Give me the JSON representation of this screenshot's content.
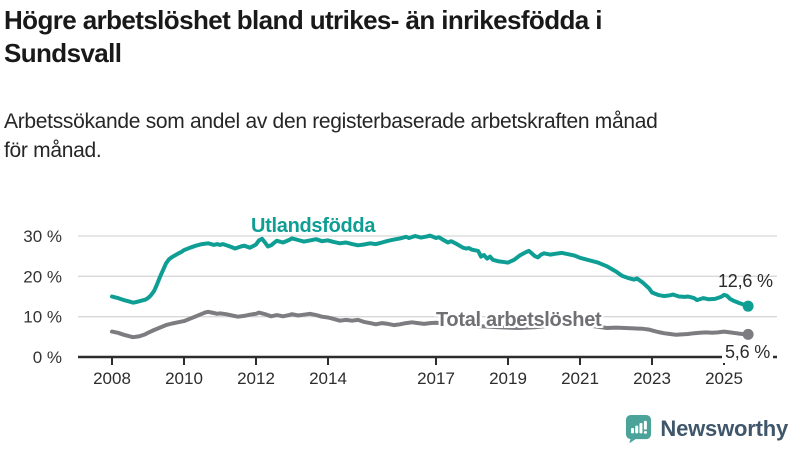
{
  "header": {
    "title_lines": [
      "Högre arbetslöshet bland utrikes- än inrikesfödda i",
      "Sundsvall"
    ],
    "subtitle_lines": [
      "Arbetssökande som andel av den registerbaserade arbetskraften månad",
      "för månad."
    ]
  },
  "chart_data": {
    "type": "line",
    "unit": "%",
    "x_axis": {
      "tick_years": [
        2008,
        2010,
        2012,
        2014,
        2017,
        2019,
        2021,
        2023,
        2025
      ],
      "range": [
        2008.0,
        2025.75
      ]
    },
    "y_axis": {
      "ticks": [
        {
          "value": 0,
          "label": "0 %"
        },
        {
          "value": 10,
          "label": "10 %"
        },
        {
          "value": 20,
          "label": "20 %"
        },
        {
          "value": 30,
          "label": "30 %"
        }
      ],
      "range": [
        0,
        32
      ],
      "gridlines": true
    },
    "legend_position": "inline-labels",
    "series": [
      {
        "name": "Utlandsfödda",
        "color": "#0e9e94",
        "end_label": "12,6 %",
        "end_value": 12.6,
        "points": [
          [
            2008.0,
            15.0
          ],
          [
            2008.08,
            14.8
          ],
          [
            2008.17,
            14.6
          ],
          [
            2008.33,
            14.1
          ],
          [
            2008.5,
            13.7
          ],
          [
            2008.58,
            13.5
          ],
          [
            2008.67,
            13.6
          ],
          [
            2008.75,
            13.8
          ],
          [
            2008.92,
            14.2
          ],
          [
            2009.0,
            14.6
          ],
          [
            2009.08,
            15.3
          ],
          [
            2009.17,
            16.4
          ],
          [
            2009.25,
            18.0
          ],
          [
            2009.33,
            19.8
          ],
          [
            2009.42,
            21.6
          ],
          [
            2009.5,
            23.2
          ],
          [
            2009.58,
            24.2
          ],
          [
            2009.67,
            24.8
          ],
          [
            2009.75,
            25.2
          ],
          [
            2009.83,
            25.6
          ],
          [
            2009.92,
            26.0
          ],
          [
            2010.0,
            26.5
          ],
          [
            2010.17,
            27.1
          ],
          [
            2010.33,
            27.6
          ],
          [
            2010.5,
            28.0
          ],
          [
            2010.67,
            28.2
          ],
          [
            2010.75,
            28.0
          ],
          [
            2010.83,
            27.8
          ],
          [
            2010.92,
            28.0
          ],
          [
            2011.0,
            27.8
          ],
          [
            2011.08,
            28.0
          ],
          [
            2011.25,
            27.5
          ],
          [
            2011.42,
            26.9
          ],
          [
            2011.58,
            27.4
          ],
          [
            2011.67,
            27.6
          ],
          [
            2011.83,
            27.1
          ],
          [
            2011.92,
            27.5
          ],
          [
            2012.0,
            27.9
          ],
          [
            2012.08,
            28.9
          ],
          [
            2012.17,
            29.3
          ],
          [
            2012.25,
            28.4
          ],
          [
            2012.33,
            27.4
          ],
          [
            2012.42,
            27.7
          ],
          [
            2012.5,
            28.3
          ],
          [
            2012.58,
            28.8
          ],
          [
            2012.75,
            28.4
          ],
          [
            2012.92,
            29.0
          ],
          [
            2013.0,
            29.4
          ],
          [
            2013.17,
            29.0
          ],
          [
            2013.33,
            28.6
          ],
          [
            2013.5,
            28.9
          ],
          [
            2013.67,
            29.2
          ],
          [
            2013.83,
            28.7
          ],
          [
            2014.0,
            28.9
          ],
          [
            2014.17,
            28.5
          ],
          [
            2014.33,
            28.2
          ],
          [
            2014.5,
            28.4
          ],
          [
            2014.67,
            28.0
          ],
          [
            2014.83,
            27.7
          ],
          [
            2015.0,
            27.9
          ],
          [
            2015.17,
            28.2
          ],
          [
            2015.33,
            28.0
          ],
          [
            2015.5,
            28.4
          ],
          [
            2015.67,
            28.8
          ],
          [
            2015.83,
            29.1
          ],
          [
            2016.0,
            29.4
          ],
          [
            2016.17,
            29.8
          ],
          [
            2016.25,
            29.5
          ],
          [
            2016.42,
            30.0
          ],
          [
            2016.58,
            29.6
          ],
          [
            2016.75,
            29.9
          ],
          [
            2016.83,
            30.1
          ],
          [
            2016.92,
            29.8
          ],
          [
            2017.0,
            29.5
          ],
          [
            2017.08,
            29.7
          ],
          [
            2017.17,
            29.2
          ],
          [
            2017.33,
            28.4
          ],
          [
            2017.42,
            28.7
          ],
          [
            2017.58,
            28.0
          ],
          [
            2017.75,
            27.1
          ],
          [
            2017.83,
            26.9
          ],
          [
            2017.92,
            27.0
          ],
          [
            2018.0,
            26.6
          ],
          [
            2018.17,
            26.3
          ],
          [
            2018.25,
            24.9
          ],
          [
            2018.33,
            25.3
          ],
          [
            2018.42,
            24.4
          ],
          [
            2018.5,
            24.9
          ],
          [
            2018.58,
            24.1
          ],
          [
            2018.75,
            23.7
          ],
          [
            2018.92,
            23.5
          ],
          [
            2019.0,
            23.4
          ],
          [
            2019.17,
            24.1
          ],
          [
            2019.33,
            25.2
          ],
          [
            2019.5,
            26.0
          ],
          [
            2019.58,
            26.3
          ],
          [
            2019.75,
            25.0
          ],
          [
            2019.83,
            24.7
          ],
          [
            2019.92,
            25.4
          ],
          [
            2020.0,
            25.7
          ],
          [
            2020.17,
            25.4
          ],
          [
            2020.33,
            25.6
          ],
          [
            2020.5,
            25.8
          ],
          [
            2020.67,
            25.5
          ],
          [
            2020.83,
            25.2
          ],
          [
            2020.92,
            24.9
          ],
          [
            2021.0,
            24.6
          ],
          [
            2021.17,
            24.2
          ],
          [
            2021.33,
            23.8
          ],
          [
            2021.5,
            23.4
          ],
          [
            2021.58,
            23.1
          ],
          [
            2021.75,
            22.5
          ],
          [
            2021.92,
            21.6
          ],
          [
            2022.0,
            21.2
          ],
          [
            2022.17,
            20.1
          ],
          [
            2022.33,
            19.6
          ],
          [
            2022.5,
            19.2
          ],
          [
            2022.58,
            19.5
          ],
          [
            2022.75,
            18.4
          ],
          [
            2022.92,
            17.0
          ],
          [
            2023.0,
            16.0
          ],
          [
            2023.17,
            15.4
          ],
          [
            2023.33,
            15.1
          ],
          [
            2023.5,
            15.3
          ],
          [
            2023.58,
            15.5
          ],
          [
            2023.75,
            15.0
          ],
          [
            2023.92,
            14.9
          ],
          [
            2024.0,
            15.0
          ],
          [
            2024.17,
            14.6
          ],
          [
            2024.25,
            14.1
          ],
          [
            2024.42,
            14.6
          ],
          [
            2024.58,
            14.3
          ],
          [
            2024.75,
            14.4
          ],
          [
            2024.92,
            14.9
          ],
          [
            2025.0,
            15.4
          ],
          [
            2025.08,
            15.2
          ],
          [
            2025.17,
            14.4
          ],
          [
            2025.25,
            14.0
          ],
          [
            2025.42,
            13.4
          ],
          [
            2025.58,
            12.9
          ],
          [
            2025.67,
            12.6
          ]
        ]
      },
      {
        "name": "Total arbetslöshet",
        "color": "#7d7d81",
        "end_label": "5,6 %",
        "end_value": 5.6,
        "points": [
          [
            2008.0,
            6.3
          ],
          [
            2008.17,
            6.0
          ],
          [
            2008.33,
            5.5
          ],
          [
            2008.5,
            5.1
          ],
          [
            2008.58,
            4.9
          ],
          [
            2008.75,
            5.1
          ],
          [
            2008.92,
            5.6
          ],
          [
            2009.0,
            6.0
          ],
          [
            2009.17,
            6.7
          ],
          [
            2009.33,
            7.3
          ],
          [
            2009.5,
            7.9
          ],
          [
            2009.67,
            8.3
          ],
          [
            2009.83,
            8.6
          ],
          [
            2010.0,
            8.9
          ],
          [
            2010.17,
            9.5
          ],
          [
            2010.33,
            10.1
          ],
          [
            2010.5,
            10.7
          ],
          [
            2010.58,
            11.0
          ],
          [
            2010.67,
            11.2
          ],
          [
            2010.83,
            10.9
          ],
          [
            2010.92,
            10.7
          ],
          [
            2011.0,
            10.8
          ],
          [
            2011.17,
            10.6
          ],
          [
            2011.33,
            10.3
          ],
          [
            2011.5,
            10.0
          ],
          [
            2011.67,
            10.2
          ],
          [
            2011.83,
            10.5
          ],
          [
            2012.0,
            10.7
          ],
          [
            2012.08,
            11.0
          ],
          [
            2012.25,
            10.6
          ],
          [
            2012.42,
            10.1
          ],
          [
            2012.58,
            10.4
          ],
          [
            2012.75,
            10.1
          ],
          [
            2012.92,
            10.4
          ],
          [
            2013.0,
            10.6
          ],
          [
            2013.17,
            10.3
          ],
          [
            2013.33,
            10.5
          ],
          [
            2013.5,
            10.7
          ],
          [
            2013.67,
            10.4
          ],
          [
            2013.83,
            10.0
          ],
          [
            2014.0,
            9.8
          ],
          [
            2014.17,
            9.4
          ],
          [
            2014.33,
            9.0
          ],
          [
            2014.5,
            9.2
          ],
          [
            2014.67,
            9.0
          ],
          [
            2014.83,
            9.2
          ],
          [
            2015.0,
            8.7
          ],
          [
            2015.17,
            8.4
          ],
          [
            2015.33,
            8.1
          ],
          [
            2015.5,
            8.4
          ],
          [
            2015.67,
            8.2
          ],
          [
            2015.83,
            7.9
          ],
          [
            2016.0,
            8.1
          ],
          [
            2016.17,
            8.4
          ],
          [
            2016.33,
            8.6
          ],
          [
            2016.5,
            8.4
          ],
          [
            2016.67,
            8.2
          ],
          [
            2016.83,
            8.4
          ],
          [
            2017.0,
            8.5
          ],
          [
            2017.25,
            8.3
          ],
          [
            2017.5,
            8.1
          ],
          [
            2017.75,
            8.0
          ],
          [
            2018.0,
            7.8
          ],
          [
            2018.25,
            7.6
          ],
          [
            2018.5,
            7.5
          ],
          [
            2018.75,
            7.4
          ],
          [
            2019.0,
            7.3
          ],
          [
            2019.25,
            7.2
          ],
          [
            2019.5,
            7.3
          ],
          [
            2019.75,
            7.4
          ],
          [
            2020.0,
            7.6
          ],
          [
            2020.25,
            8.4
          ],
          [
            2020.5,
            8.9
          ],
          [
            2020.75,
            8.6
          ],
          [
            2021.0,
            8.2
          ],
          [
            2021.25,
            7.8
          ],
          [
            2021.5,
            7.5
          ],
          [
            2021.75,
            7.2
          ],
          [
            2022.0,
            7.3
          ],
          [
            2022.25,
            7.2
          ],
          [
            2022.5,
            7.1
          ],
          [
            2022.75,
            7.0
          ],
          [
            2022.92,
            6.8
          ],
          [
            2023.0,
            6.6
          ],
          [
            2023.17,
            6.2
          ],
          [
            2023.33,
            5.9
          ],
          [
            2023.5,
            5.7
          ],
          [
            2023.67,
            5.5
          ],
          [
            2023.83,
            5.6
          ],
          [
            2024.0,
            5.7
          ],
          [
            2024.17,
            5.9
          ],
          [
            2024.33,
            6.0
          ],
          [
            2024.5,
            6.1
          ],
          [
            2024.67,
            6.0
          ],
          [
            2024.83,
            6.1
          ],
          [
            2025.0,
            6.3
          ],
          [
            2025.17,
            6.1
          ],
          [
            2025.33,
            5.9
          ],
          [
            2025.5,
            5.7
          ],
          [
            2025.67,
            5.6
          ]
        ]
      }
    ]
  },
  "footer": {
    "brand": "Newsworthy"
  },
  "colors": {
    "teal": "#0e9e94",
    "gray_line": "#7d7d81",
    "gray_label": "#6f6f74",
    "grid": "#d8d8d8",
    "axis": "#2d2d2d",
    "tick_text": "#333333",
    "logo_icon": "#4ba39a",
    "logo_text": "#3f566b"
  }
}
